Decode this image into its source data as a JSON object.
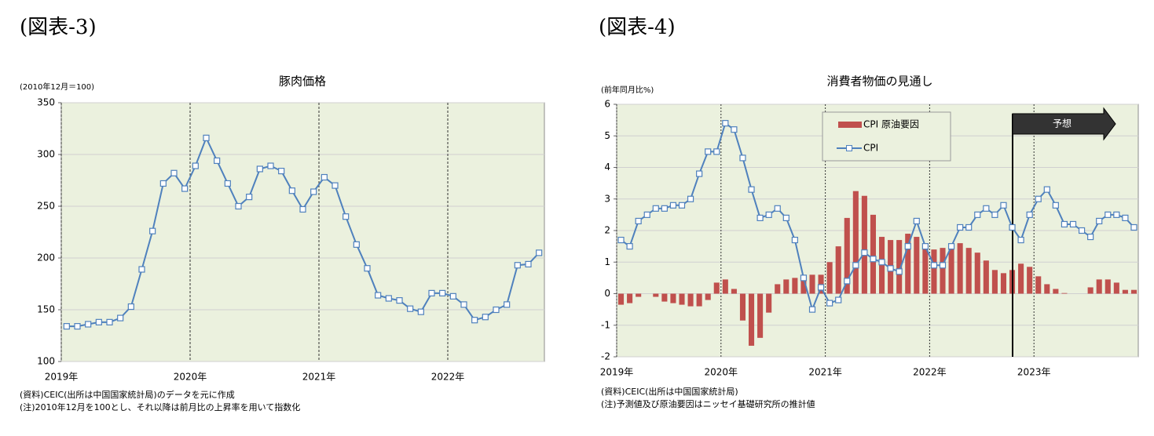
{
  "chart_data": [
    {
      "type": "line",
      "figure_label": "(図表-3)",
      "title": "豚肉価格",
      "unit_label": "(2010年12月＝100)",
      "notes": [
        "(資料)CEIC(出所は中国国家統計局)のデータを元に作成",
        "(注)2010年12月を100とし、それ以降は前月比の上昇率を用いて指数化"
      ],
      "categories": [
        "2019年",
        null,
        null,
        null,
        null,
        null,
        null,
        null,
        null,
        null,
        null,
        null,
        "2020年",
        null,
        null,
        null,
        null,
        null,
        null,
        null,
        null,
        null,
        null,
        null,
        "2021年",
        null,
        null,
        null,
        null,
        null,
        null,
        null,
        null,
        null,
        null,
        null,
        "2022年",
        null,
        null,
        null,
        null,
        null,
        null,
        null,
        null
      ],
      "values": [
        134,
        134,
        136,
        138,
        138,
        142,
        153,
        189,
        226,
        272,
        282,
        267,
        289,
        316,
        294,
        272,
        250,
        259,
        286,
        289,
        284,
        265,
        247,
        264,
        278,
        270,
        240,
        213,
        190,
        164,
        161,
        159,
        151,
        148,
        166,
        166,
        163,
        155,
        140,
        143,
        150,
        155,
        193,
        194,
        205
      ],
      "color": "#4f81bd",
      "ylim": [
        100,
        350
      ],
      "yticks": [
        100,
        150,
        200,
        250,
        300,
        350
      ],
      "grid": true
    },
    {
      "type": "combo",
      "figure_label": "(図表-4)",
      "title": "消費者物価の見通し",
      "unit_label": "(前年同月比%)",
      "annotation": "予想",
      "notes": [
        "(資料)CEIC(出所は中国国家統計局)",
        "(注)予測値及び原油要因はニッセイ基礎研究所の推計値"
      ],
      "categories": [
        "2019年",
        null,
        null,
        null,
        null,
        null,
        null,
        null,
        null,
        null,
        null,
        null,
        "2020年",
        null,
        null,
        null,
        null,
        null,
        null,
        null,
        null,
        null,
        null,
        null,
        "2021年",
        null,
        null,
        null,
        null,
        null,
        null,
        null,
        null,
        null,
        null,
        null,
        "2022年",
        null,
        null,
        null,
        null,
        null,
        null,
        null,
        null,
        null,
        null,
        null,
        "2023年",
        null,
        null,
        null,
        null,
        null,
        null,
        null,
        null,
        null,
        null,
        null
      ],
      "series": [
        {
          "name": "CPI 原油要因",
          "type": "bar",
          "color": "#c0504d",
          "values": [
            -0.35,
            -0.3,
            -0.1,
            0.0,
            -0.1,
            -0.25,
            -0.3,
            -0.35,
            -0.4,
            -0.4,
            -0.2,
            0.35,
            0.45,
            0.15,
            -0.85,
            -1.65,
            -1.4,
            -0.6,
            0.3,
            0.45,
            0.5,
            0.55,
            0.6,
            0.6,
            1.0,
            1.5,
            2.4,
            3.25,
            3.1,
            2.5,
            1.8,
            1.7,
            1.7,
            1.9,
            1.8,
            1.6,
            1.4,
            1.45,
            1.5,
            1.6,
            1.45,
            1.3,
            1.05,
            0.75,
            0.65,
            0.75,
            0.95,
            0.85,
            0.55,
            0.3,
            0.15,
            0.02,
            0.0,
            0.0,
            0.2,
            0.45,
            0.45,
            0.35,
            0.12,
            0.12
          ]
        },
        {
          "name": "CPI",
          "type": "line",
          "color": "#4f81bd",
          "values": [
            1.7,
            1.5,
            2.3,
            2.5,
            2.7,
            2.7,
            2.8,
            2.8,
            3.0,
            3.8,
            4.5,
            4.5,
            5.4,
            5.2,
            4.3,
            3.3,
            2.4,
            2.5,
            2.7,
            2.4,
            1.7,
            0.5,
            -0.5,
            0.2,
            -0.3,
            -0.2,
            0.4,
            0.9,
            1.3,
            1.1,
            1.0,
            0.8,
            0.7,
            1.5,
            2.3,
            1.5,
            0.9,
            0.9,
            1.5,
            2.1,
            2.1,
            2.5,
            2.7,
            2.5,
            2.8,
            2.1,
            1.7,
            2.5,
            3.0,
            3.3,
            2.8,
            2.2,
            2.2,
            2.0,
            1.8,
            2.3,
            2.5,
            2.5,
            2.4,
            2.1
          ]
        }
      ],
      "ylim": [
        -2,
        6
      ],
      "yticks": [
        -2,
        -1,
        0,
        1,
        2,
        3,
        4,
        5,
        6
      ],
      "grid": true,
      "legend": "upper center"
    }
  ]
}
